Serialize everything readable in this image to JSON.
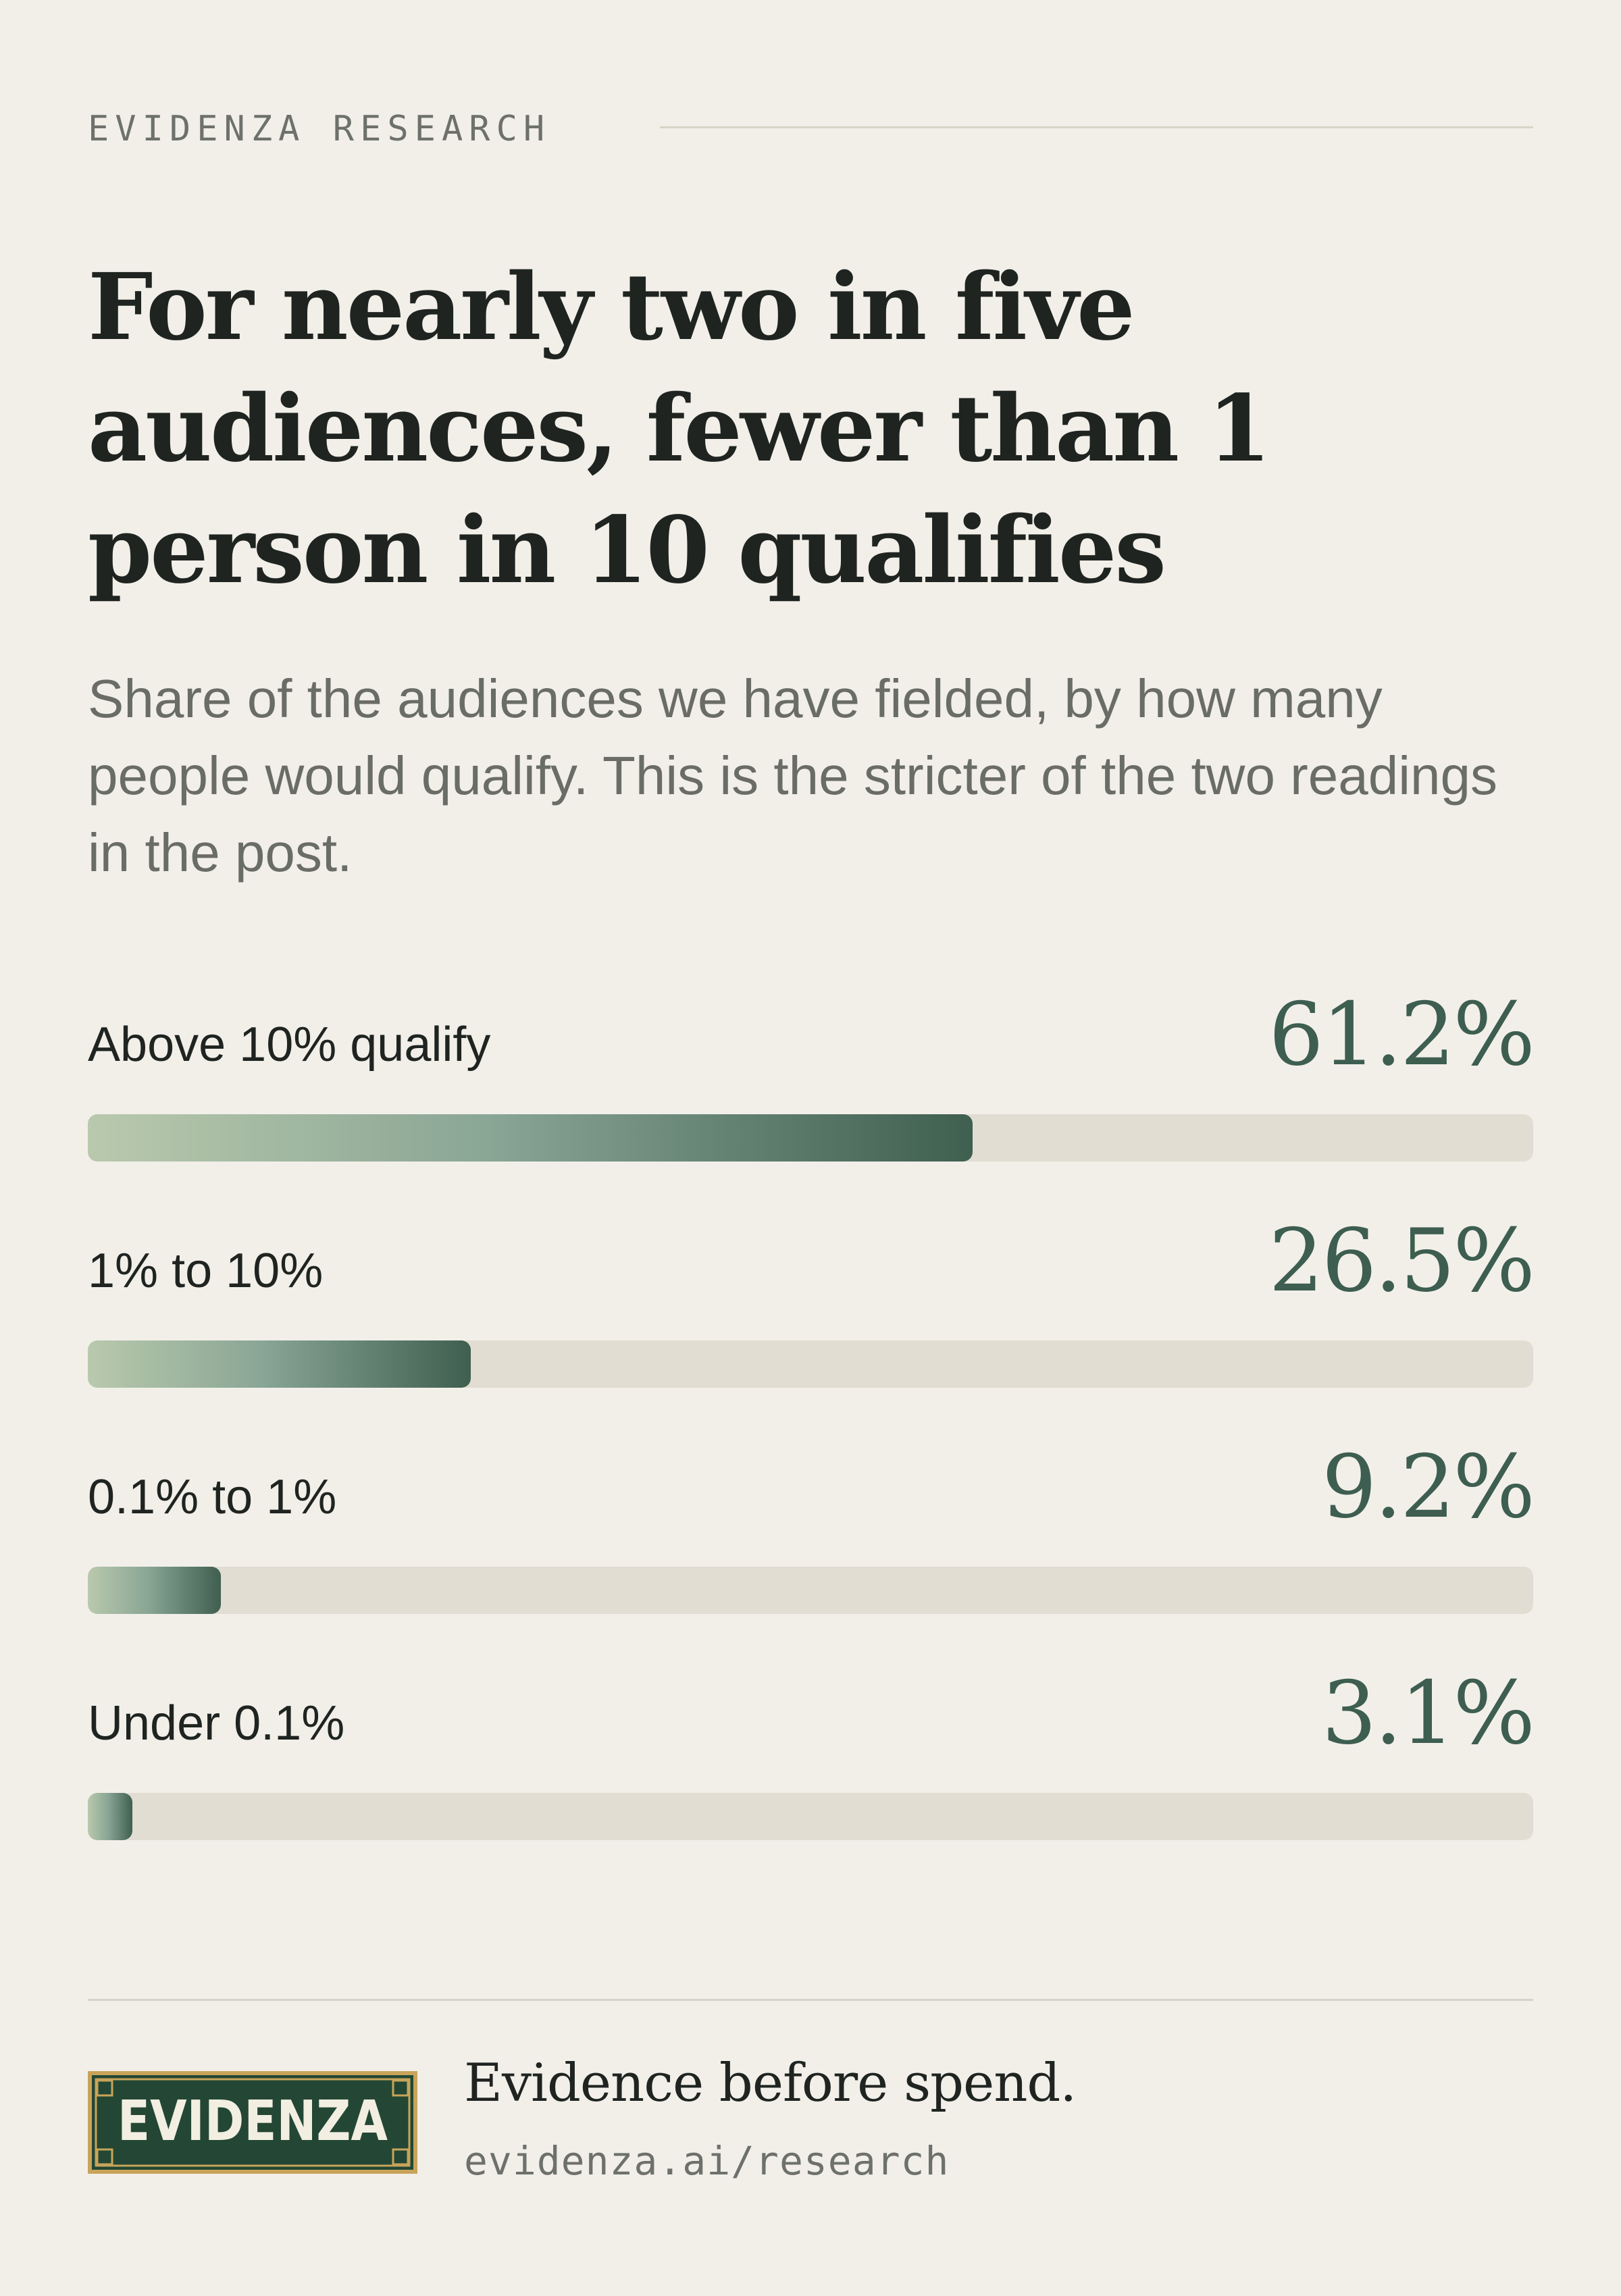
{
  "header": {
    "eyebrow": "EVIDENZA RESEARCH",
    "title": "For nearly two in five audiences, fewer than 1 person in 10 qualifies",
    "subtitle": "Share of the audiences we have fielded, by how many people would qualify. This is the stricter of the two readings in the post."
  },
  "chart_data": {
    "type": "bar",
    "orientation": "horizontal",
    "title": "For nearly two in five audiences, fewer than 1 person in 10 qualifies",
    "subtitle": "Share of the audiences we have fielded, by how many people would qualify. This is the stricter of the two readings in the post.",
    "categories": [
      "Above 10% qualify",
      "1% to 10%",
      "0.1% to 1%",
      "Under 0.1%"
    ],
    "values": [
      61.2,
      26.5,
      9.2,
      3.1
    ],
    "value_labels": [
      "61.2%",
      "26.5%",
      "9.2%",
      "3.1%"
    ],
    "xlim": [
      0,
      100
    ],
    "unit": "%",
    "grid": false,
    "legend": "none",
    "colors": {
      "bar_start": "#b9c9ad",
      "bar_end": "#3f5f50",
      "track": "#e1ddd2",
      "value_text": "#3d5e50"
    }
  },
  "footer": {
    "logo_text": "EVIDENZA",
    "tagline": "Evidence before spend.",
    "url": "evidenza.ai/research"
  },
  "colors": {
    "background": "#f2efe9",
    "text": "#1f2421",
    "muted": "#6a6c66",
    "accent": "#3d5e50",
    "logo_bg": "#234734",
    "logo_border": "#c8a45a"
  }
}
